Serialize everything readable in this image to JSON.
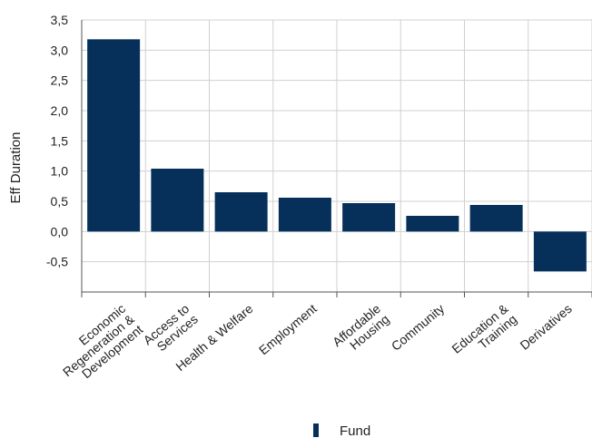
{
  "chart_data": {
    "type": "bar",
    "categories": [
      [
        "Economic",
        "Regeneration &",
        "Development"
      ],
      [
        "Access to",
        "Services"
      ],
      [
        "Health & Welfare"
      ],
      [
        "Employment"
      ],
      [
        "Affordable",
        "Housing"
      ],
      [
        "Community"
      ],
      [
        "Education &",
        "Training"
      ],
      [
        "Derivatives"
      ]
    ],
    "series": [
      {
        "name": "Fund",
        "color": "#06305a",
        "values": [
          3.18,
          1.04,
          0.65,
          0.56,
          0.47,
          0.26,
          0.44,
          -0.66
        ]
      }
    ],
    "ylabel": "Eff Duration",
    "xlabel": "",
    "ylim": [
      -1.0,
      3.5
    ],
    "yticks": [
      "3,5",
      "3,0",
      "2,5",
      "2,0",
      "1,5",
      "1,0",
      "0,5",
      "0,0",
      "-0,5"
    ],
    "ytick_values": [
      3.5,
      3.0,
      2.5,
      2.0,
      1.5,
      1.0,
      0.5,
      0.0,
      -0.5
    ],
    "grid": true,
    "legend_position": "bottom-center"
  }
}
